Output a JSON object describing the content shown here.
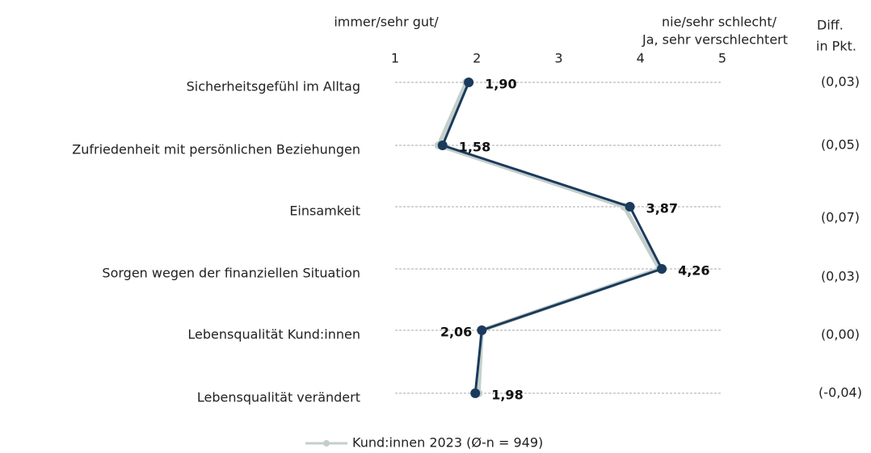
{
  "chart_data": {
    "type": "line",
    "orientation": "horizontal",
    "categories": [
      "Sicherheitsgefühl im Alltag",
      "Zufriedenheit mit persönlichen Beziehungen",
      "Einsamkeit",
      "Sorgen wegen der finanziellen Situation",
      "Lebensqualität Kund:innen",
      "Lebensqualität verändert"
    ],
    "series": [
      {
        "name": "Kund:innen 2023 (Ø-n = 949)",
        "color": "#c3cfcb",
        "values": [
          1.87,
          1.53,
          3.8,
          4.23,
          2.06,
          2.02
        ]
      },
      {
        "color": "#1b3a5c",
        "values": [
          1.9,
          1.58,
          3.87,
          4.26,
          2.06,
          1.98
        ],
        "value_labels": [
          "1,90",
          "1,58",
          "3,87",
          "4,26",
          "2,06",
          "1,98"
        ]
      }
    ],
    "xlim": [
      1,
      5
    ],
    "xticks": [
      1,
      2,
      3,
      4,
      5
    ],
    "grid": true,
    "left_axis_label": "immer/sehr gut/",
    "right_axis_label": [
      "nie/sehr schlecht/",
      "Ja, sehr verschlechtert"
    ],
    "diff_header": [
      "Diff.",
      "in Pkt."
    ],
    "diff_labels": [
      "(0,03)",
      "(0,05)",
      "(0,07)",
      "(0,03)",
      "(0,00)",
      "(-0,04)"
    ]
  }
}
